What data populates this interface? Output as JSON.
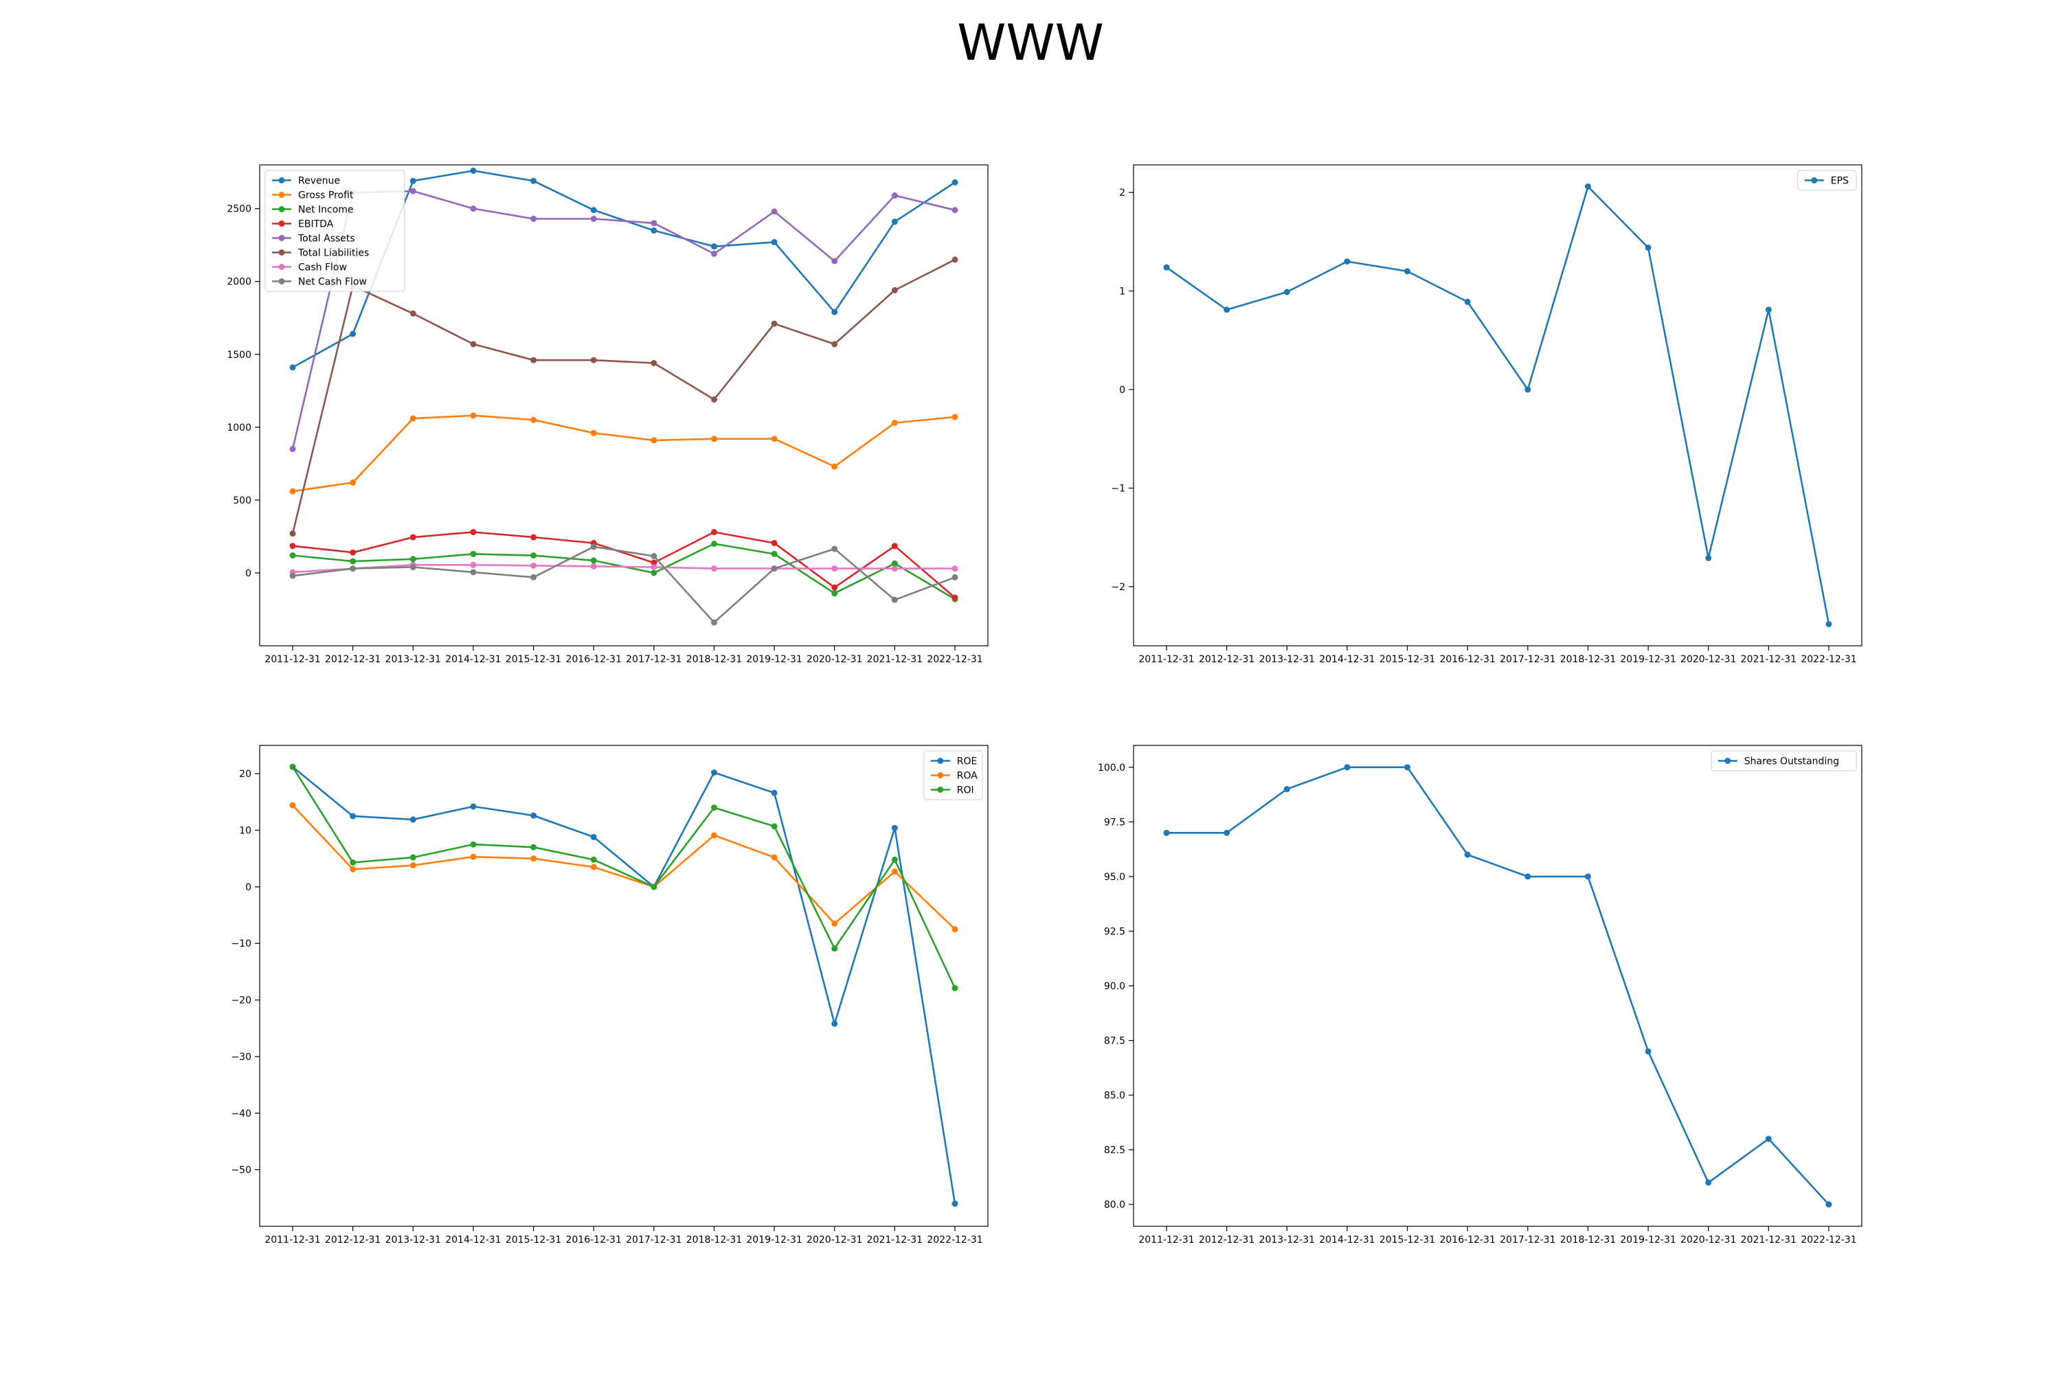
{
  "figure": {
    "title": "WWW"
  },
  "chart_data": [
    {
      "id": "financials",
      "type": "line",
      "x": [
        "2011-12-31",
        "2012-12-31",
        "2013-12-31",
        "2014-12-31",
        "2015-12-31",
        "2016-12-31",
        "2017-12-31",
        "2018-12-31",
        "2019-12-31",
        "2020-12-31",
        "2021-12-31",
        "2022-12-31"
      ],
      "ylim": [
        -500,
        2800
      ],
      "yticks": [
        0,
        500,
        1000,
        1500,
        2000,
        2500
      ],
      "legend": "top-left",
      "series": [
        {
          "name": "Revenue",
          "color": "#1f77b4",
          "values": [
            1410,
            1640,
            2690,
            2760,
            2690,
            2490,
            2350,
            2240,
            2270,
            1790,
            2410,
            2680
          ]
        },
        {
          "name": "Gross Profit",
          "color": "#ff7f0e",
          "values": [
            560,
            620,
            1060,
            1080,
            1050,
            960,
            910,
            920,
            920,
            730,
            1030,
            1070
          ]
        },
        {
          "name": "Net Income",
          "color": "#2ca02c",
          "values": [
            120,
            80,
            95,
            130,
            120,
            85,
            0,
            200,
            130,
            -140,
            65,
            -180
          ]
        },
        {
          "name": "EBITDA",
          "color": "#d62728",
          "values": [
            185,
            140,
            245,
            280,
            245,
            205,
            70,
            280,
            205,
            -100,
            185,
            -170
          ]
        },
        {
          "name": "Total Assets",
          "color": "#9467bd",
          "values": [
            850,
            2610,
            2620,
            2500,
            2430,
            2430,
            2400,
            2190,
            2480,
            2140,
            2590,
            2490
          ]
        },
        {
          "name": "Total Liabilities",
          "color": "#8c564b",
          "values": [
            270,
            1970,
            1780,
            1570,
            1460,
            1460,
            1440,
            1190,
            1710,
            1570,
            1940,
            2150
          ]
        },
        {
          "name": "Cash Flow",
          "color": "#e377c2",
          "values": [
            5,
            30,
            55,
            55,
            50,
            45,
            40,
            30,
            30,
            30,
            30,
            30
          ]
        },
        {
          "name": "Net Cash Flow",
          "color": "#7f7f7f",
          "values": [
            -20,
            30,
            40,
            5,
            -30,
            180,
            115,
            -340,
            30,
            165,
            -185,
            -30
          ]
        }
      ]
    },
    {
      "id": "eps",
      "type": "line",
      "x": [
        "2011-12-31",
        "2012-12-31",
        "2013-12-31",
        "2014-12-31",
        "2015-12-31",
        "2016-12-31",
        "2017-12-31",
        "2018-12-31",
        "2019-12-31",
        "2020-12-31",
        "2021-12-31",
        "2022-12-31"
      ],
      "ylim": [
        -2.6,
        2.28
      ],
      "yticks": [
        -2,
        -1,
        0,
        1,
        2
      ],
      "legend": "top-right",
      "series": [
        {
          "name": "EPS",
          "color": "#1f77b4",
          "values": [
            1.24,
            0.81,
            0.99,
            1.3,
            1.2,
            0.89,
            0.0,
            2.06,
            1.44,
            -1.71,
            0.81,
            -2.38
          ]
        }
      ]
    },
    {
      "id": "returns",
      "type": "line",
      "x": [
        "2011-12-31",
        "2012-12-31",
        "2013-12-31",
        "2014-12-31",
        "2015-12-31",
        "2016-12-31",
        "2017-12-31",
        "2018-12-31",
        "2019-12-31",
        "2020-12-31",
        "2021-12-31",
        "2022-12-31"
      ],
      "ylim": [
        -60,
        25
      ],
      "yticks": [
        -50,
        -40,
        -30,
        -20,
        -10,
        0,
        10,
        20
      ],
      "legend": "top-right",
      "series": [
        {
          "name": "ROE",
          "color": "#1f77b4",
          "values": [
            21.2,
            12.5,
            11.9,
            14.2,
            12.6,
            8.8,
            0.0,
            20.2,
            16.6,
            -24.2,
            10.4,
            -56.0
          ]
        },
        {
          "name": "ROA",
          "color": "#ff7f0e",
          "values": [
            14.4,
            3.1,
            3.8,
            5.3,
            5.0,
            3.5,
            0.0,
            9.1,
            5.2,
            -6.5,
            2.7,
            -7.5
          ]
        },
        {
          "name": "ROI",
          "color": "#2ca02c",
          "values": [
            21.2,
            4.3,
            5.2,
            7.5,
            7.0,
            4.8,
            0.0,
            14.0,
            10.7,
            -10.9,
            4.8,
            -17.9
          ]
        }
      ]
    },
    {
      "id": "shares",
      "type": "line",
      "x": [
        "2011-12-31",
        "2012-12-31",
        "2013-12-31",
        "2014-12-31",
        "2015-12-31",
        "2016-12-31",
        "2017-12-31",
        "2018-12-31",
        "2019-12-31",
        "2020-12-31",
        "2021-12-31",
        "2022-12-31"
      ],
      "ylim": [
        79,
        101
      ],
      "yticks": [
        80.0,
        82.5,
        85.0,
        87.5,
        90.0,
        92.5,
        95.0,
        97.5,
        100.0
      ],
      "ytick_decimals": 1,
      "legend": "top-right",
      "series": [
        {
          "name": "Shares Outstanding",
          "color": "#1f77b4",
          "values": [
            97,
            97,
            99,
            100,
            100,
            96,
            95,
            95,
            87,
            81,
            83,
            80
          ]
        }
      ]
    }
  ]
}
